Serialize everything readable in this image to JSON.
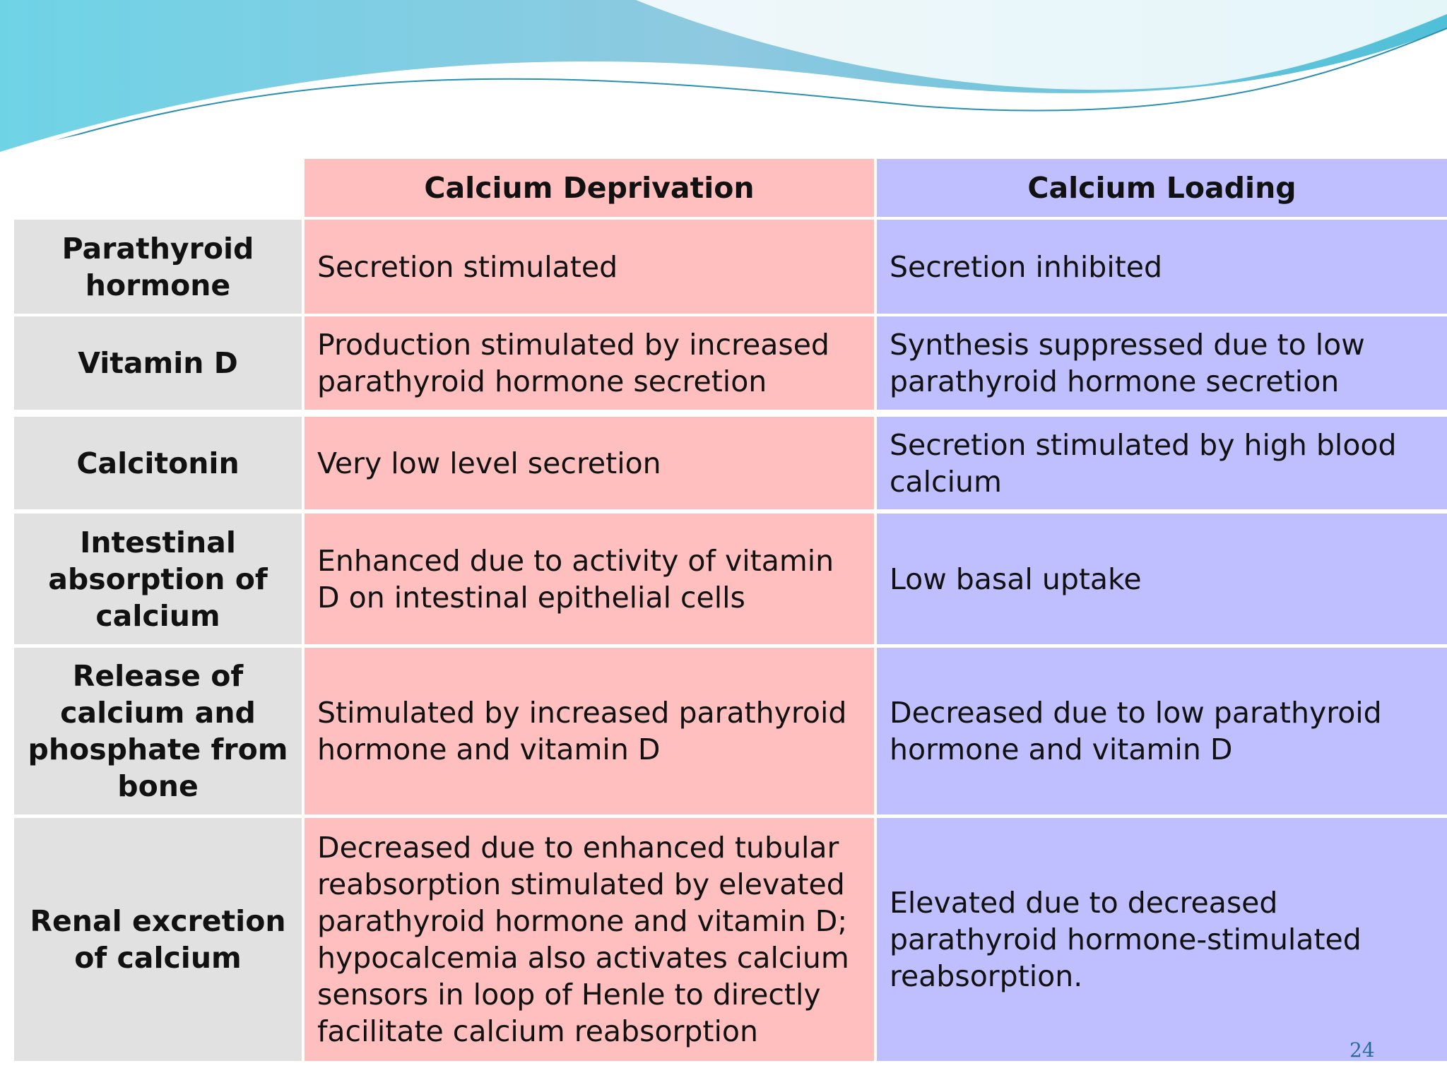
{
  "table": {
    "columns": [
      "Calcium Deprivation",
      "Calcium Loading"
    ],
    "rows": [
      [
        "Parathyroid hormone",
        "Secretion stimulated",
        "Secretion inhibited"
      ],
      [
        "Vitamin D",
        "Production stimulated by increased parathyroid hormone secretion",
        "Synthesis suppressed due to low parathyroid hormone secretion"
      ],
      [
        "Calcitonin",
        "Very low level secretion",
        "Secretion stimulated by high blood calcium"
      ],
      [
        "Intestinal absorption of calcium",
        "Enhanced due to activity of vitamin D on intestinal epithelial cells",
        "Low basal uptake"
      ],
      [
        "Release of calcium and phosphate from bone",
        "Stimulated by increased parathyroid hormone and vitamin D",
        "Decreased due to low parathyroid hormone and vitamin D"
      ],
      [
        "Renal excretion of calcium",
        "Decreased due to enhanced tubular reabsorption stimulated by elevated parathyroid hormone and vitamin D; hypocalcemia also activates calcium sensors in loop of Henle to directly facilitate calcium reabsorption",
        "Elevated due to decreased parathyroid hormone-stimulated reabsorption."
      ]
    ]
  },
  "page_number": "24"
}
